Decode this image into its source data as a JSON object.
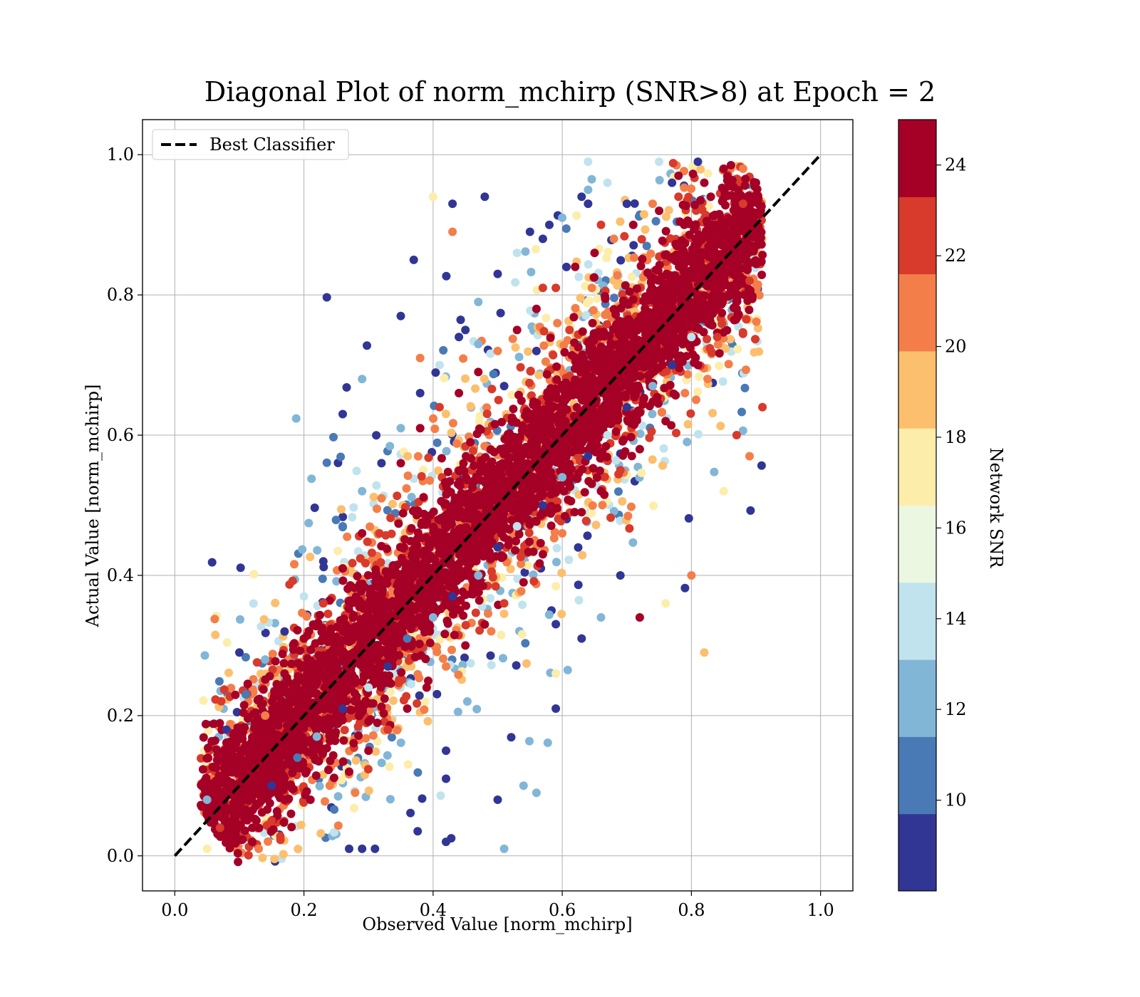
{
  "chart_data": {
    "type": "scatter",
    "title": "Diagonal Plot of norm_mchirp (SNR>8) at Epoch = 2",
    "xlabel": "Observed Value [norm_mchirp]",
    "ylabel": "Actual Value [norm_mchirp]",
    "xlim": [
      -0.05,
      1.05
    ],
    "ylim": [
      -0.05,
      1.05
    ],
    "xticks": [
      "0.0",
      "0.2",
      "0.4",
      "0.6",
      "0.8",
      "1.0"
    ],
    "yticks": [
      "0.0",
      "0.2",
      "0.4",
      "0.6",
      "0.8",
      "1.0"
    ],
    "grid": true,
    "legend": {
      "placement": "upper-left",
      "entries": [
        "Best Classifier"
      ]
    },
    "reference_line": {
      "name": "Best Classifier",
      "style": "dashed",
      "color": "#000000",
      "x": [
        0,
        1
      ],
      "y": [
        0,
        1
      ]
    },
    "colorbar": {
      "label": "Network SNR",
      "range": [
        8,
        25
      ],
      "ticks": [
        "10",
        "12",
        "14",
        "16",
        "18",
        "20",
        "22",
        "24"
      ],
      "bands": [
        {
          "from": 8.0,
          "to": 9.7,
          "color": "#313695"
        },
        {
          "from": 9.7,
          "to": 11.4,
          "color": "#4a7ab6"
        },
        {
          "from": 11.4,
          "to": 13.1,
          "color": "#82b6d7"
        },
        {
          "from": 13.1,
          "to": 14.8,
          "color": "#c0e3ee"
        },
        {
          "from": 14.8,
          "to": 16.5,
          "color": "#ecf7e2"
        },
        {
          "from": 16.5,
          "to": 18.2,
          "color": "#fcedaa"
        },
        {
          "from": 18.2,
          "to": 19.9,
          "color": "#fcbf6e"
        },
        {
          "from": 19.9,
          "to": 21.6,
          "color": "#f47e4a"
        },
        {
          "from": 21.6,
          "to": 23.3,
          "color": "#d83a2b"
        },
        {
          "from": 23.3,
          "to": 25.0,
          "color": "#a50026"
        }
      ]
    },
    "points": [
      [
        0.1,
        0.29,
        8.5
      ],
      [
        0.37,
        0.85,
        9.0
      ],
      [
        0.43,
        0.93,
        9.0
      ],
      [
        0.48,
        0.94,
        9.0
      ],
      [
        0.29,
        0.68,
        13
      ],
      [
        0.26,
        0.63,
        9.0
      ],
      [
        0.35,
        0.77,
        9.0
      ],
      [
        0.4,
        0.94,
        17
      ],
      [
        0.43,
        0.89,
        20
      ],
      [
        0.64,
        0.95,
        12
      ],
      [
        0.81,
        0.99,
        9
      ],
      [
        0.75,
        0.99,
        14
      ],
      [
        0.64,
        0.99,
        14
      ],
      [
        0.77,
        0.96,
        9
      ],
      [
        0.91,
        0.64,
        22
      ],
      [
        0.89,
        0.57,
        21
      ],
      [
        0.82,
        0.29,
        19
      ],
      [
        0.72,
        0.34,
        24
      ],
      [
        0.59,
        0.26,
        18
      ],
      [
        0.59,
        0.21,
        9
      ],
      [
        0.5,
        0.08,
        9
      ],
      [
        0.51,
        0.01,
        13
      ],
      [
        0.42,
        0.02,
        9
      ],
      [
        0.56,
        0.09,
        13
      ],
      [
        0.54,
        0.1,
        13
      ],
      [
        0.42,
        0.11,
        9
      ],
      [
        0.42,
        0.15,
        9
      ],
      [
        0.29,
        0.01,
        9
      ],
      [
        0.31,
        0.01,
        9
      ],
      [
        0.27,
        0.01,
        9
      ],
      [
        0.13,
        0.01,
        21
      ],
      [
        0.12,
        0.02,
        24
      ],
      [
        0.05,
        0.01,
        18
      ],
      [
        0.05,
        0.08,
        12
      ],
      [
        0.76,
        0.36,
        17
      ],
      [
        0.8,
        0.4,
        20
      ],
      [
        0.85,
        0.52,
        17
      ],
      [
        0.87,
        0.6,
        22
      ],
      [
        0.69,
        0.4,
        9
      ],
      [
        0.66,
        0.34,
        13
      ],
      [
        0.63,
        0.31,
        9
      ],
      [
        0.56,
        0.72,
        9
      ],
      [
        0.51,
        0.67,
        9
      ],
      [
        0.47,
        0.73,
        12
      ],
      [
        0.45,
        0.75,
        9
      ],
      [
        0.38,
        0.71,
        21
      ],
      [
        0.55,
        0.89,
        9
      ],
      [
        0.58,
        0.9,
        9
      ],
      [
        0.64,
        0.93,
        9
      ],
      [
        0.57,
        0.81,
        22
      ],
      [
        0.66,
        0.9,
        23
      ],
      [
        0.7,
        0.93,
        9
      ],
      [
        0.74,
        0.93,
        20
      ],
      [
        0.78,
        0.97,
        24
      ],
      [
        0.83,
        0.94,
        24
      ],
      [
        0.86,
        0.96,
        24
      ],
      [
        0.88,
        0.93,
        22
      ],
      [
        0.9,
        0.9,
        24
      ],
      [
        0.89,
        0.82,
        23
      ],
      [
        0.87,
        0.78,
        24
      ],
      [
        0.84,
        0.74,
        22
      ],
      [
        0.81,
        0.7,
        24
      ],
      [
        0.79,
        0.66,
        21
      ],
      [
        0.76,
        0.62,
        24
      ],
      [
        0.72,
        0.58,
        24
      ],
      [
        0.69,
        0.55,
        22
      ],
      [
        0.66,
        0.52,
        24
      ],
      [
        0.63,
        0.49,
        24
      ],
      [
        0.6,
        0.46,
        21
      ],
      [
        0.57,
        0.43,
        24
      ],
      [
        0.54,
        0.39,
        24
      ],
      [
        0.51,
        0.36,
        22
      ],
      [
        0.48,
        0.33,
        24
      ],
      [
        0.45,
        0.3,
        24
      ],
      [
        0.42,
        0.27,
        21
      ],
      [
        0.39,
        0.24,
        24
      ],
      [
        0.36,
        0.21,
        24
      ],
      [
        0.33,
        0.18,
        22
      ],
      [
        0.3,
        0.15,
        24
      ],
      [
        0.27,
        0.12,
        24
      ],
      [
        0.24,
        0.1,
        21
      ],
      [
        0.21,
        0.08,
        24
      ],
      [
        0.18,
        0.06,
        24
      ],
      [
        0.15,
        0.05,
        22
      ],
      [
        0.12,
        0.04,
        24
      ],
      [
        0.09,
        0.03,
        24
      ],
      [
        0.07,
        0.04,
        22
      ],
      [
        0.08,
        0.1,
        24
      ],
      [
        0.11,
        0.15,
        24
      ],
      [
        0.14,
        0.2,
        21
      ],
      [
        0.17,
        0.26,
        24
      ],
      [
        0.2,
        0.31,
        24
      ],
      [
        0.23,
        0.36,
        22
      ],
      [
        0.26,
        0.41,
        24
      ],
      [
        0.29,
        0.46,
        24
      ],
      [
        0.32,
        0.51,
        21
      ],
      [
        0.35,
        0.56,
        24
      ],
      [
        0.38,
        0.61,
        24
      ],
      [
        0.41,
        0.64,
        22
      ],
      [
        0.44,
        0.66,
        24
      ],
      [
        0.47,
        0.69,
        24
      ],
      [
        0.5,
        0.72,
        21
      ],
      [
        0.53,
        0.75,
        24
      ],
      [
        0.56,
        0.78,
        24
      ],
      [
        0.59,
        0.81,
        22
      ],
      [
        0.62,
        0.84,
        24
      ],
      [
        0.65,
        0.86,
        24
      ],
      [
        0.68,
        0.88,
        21
      ],
      [
        0.71,
        0.9,
        24
      ],
      [
        0.75,
        0.92,
        24
      ],
      [
        0.78,
        0.94,
        22
      ],
      [
        0.82,
        0.96,
        24
      ],
      [
        0.85,
        0.98,
        24
      ],
      [
        0.88,
        0.98,
        21
      ],
      [
        0.9,
        0.96,
        24
      ],
      [
        0.15,
        0.1,
        9
      ],
      [
        0.19,
        0.14,
        10
      ],
      [
        0.22,
        0.17,
        12
      ],
      [
        0.26,
        0.21,
        9
      ],
      [
        0.3,
        0.24,
        14
      ],
      [
        0.33,
        0.27,
        9
      ],
      [
        0.36,
        0.31,
        10
      ],
      [
        0.4,
        0.34,
        12
      ],
      [
        0.43,
        0.37,
        9
      ],
      [
        0.47,
        0.4,
        13
      ],
      [
        0.5,
        0.44,
        9
      ],
      [
        0.53,
        0.47,
        14
      ],
      [
        0.57,
        0.5,
        9
      ],
      [
        0.6,
        0.54,
        12
      ],
      [
        0.64,
        0.57,
        9
      ],
      [
        0.67,
        0.6,
        14
      ],
      [
        0.7,
        0.64,
        9
      ],
      [
        0.74,
        0.67,
        12
      ],
      [
        0.77,
        0.7,
        9
      ],
      [
        0.8,
        0.74,
        14
      ],
      [
        0.08,
        0.18,
        9
      ],
      [
        0.11,
        0.23,
        10
      ],
      [
        0.14,
        0.28,
        12
      ],
      [
        0.17,
        0.32,
        9
      ],
      [
        0.2,
        0.37,
        14
      ],
      [
        0.23,
        0.42,
        9
      ],
      [
        0.26,
        0.47,
        10
      ],
      [
        0.29,
        0.52,
        12
      ],
      [
        0.32,
        0.56,
        9
      ],
      [
        0.35,
        0.61,
        13
      ],
      [
        0.38,
        0.66,
        9
      ],
      [
        0.41,
        0.7,
        14
      ],
      [
        0.44,
        0.74,
        9
      ],
      [
        0.47,
        0.79,
        12
      ],
      [
        0.5,
        0.83,
        9
      ],
      [
        0.53,
        0.86,
        14
      ],
      [
        0.57,
        0.88,
        9
      ],
      [
        0.6,
        0.91,
        12
      ],
      [
        0.63,
        0.94,
        9
      ],
      [
        0.67,
        0.96,
        14
      ]
    ]
  }
}
